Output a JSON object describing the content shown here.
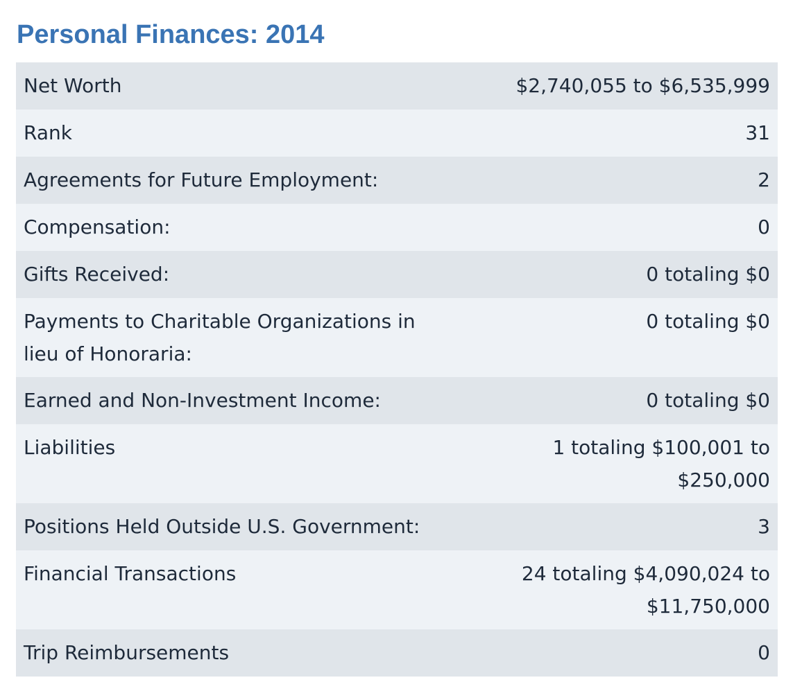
{
  "title": "Personal Finances: 2014",
  "rows": [
    {
      "label": "Net Worth",
      "value": "$2,740,055 to $6,535,999"
    },
    {
      "label": "Rank",
      "value": "31"
    },
    {
      "label": "Agreements for Future Employment:",
      "value": "2"
    },
    {
      "label": "Compensation:",
      "value": "0"
    },
    {
      "label": "Gifts Received:",
      "value": "0 totaling $0"
    },
    {
      "label": "Payments to Charitable Organizations in lieu of Honoraria:",
      "value": "0 totaling $0"
    },
    {
      "label": "Earned and Non-Investment Income:",
      "value": "0 totaling $0"
    },
    {
      "label": "Liabilities",
      "value": "1 totaling $100,001 to $250,000"
    },
    {
      "label": "Positions Held Outside U.S. Government:",
      "value": "3"
    },
    {
      "label": "Financial Transactions",
      "value": "24 totaling $4,090,024 to $11,750,000"
    },
    {
      "label": "Trip Reimbursements",
      "value": "0"
    }
  ]
}
